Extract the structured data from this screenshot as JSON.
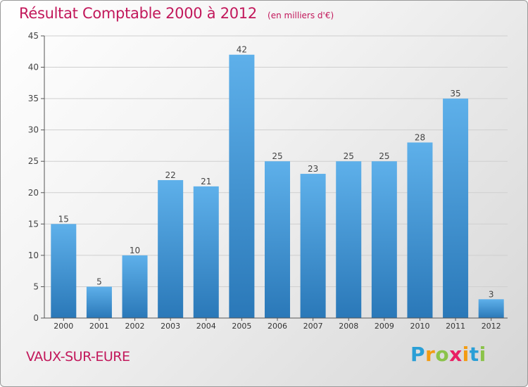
{
  "chart_data": {
    "type": "bar",
    "title": "Résultat Comptable 2000 à 2012",
    "subtitle": "(en milliers d'€)",
    "xlabel": "",
    "ylabel": "",
    "categories": [
      "2000",
      "2001",
      "2002",
      "2003",
      "2004",
      "2005",
      "2006",
      "2007",
      "2008",
      "2009",
      "2010",
      "2011",
      "2012"
    ],
    "values": [
      15,
      5,
      10,
      22,
      21,
      42,
      25,
      23,
      25,
      25,
      28,
      35,
      3
    ],
    "ylim": [
      0,
      45
    ],
    "yticks": [
      0,
      5,
      10,
      15,
      20,
      25,
      30,
      35,
      40,
      45
    ],
    "grid": true,
    "bar_color": "#3b8fd4",
    "text_color": "#c2185b"
  },
  "footer": {
    "place_name": "VAUX-SUR-EURE",
    "logo_letters": [
      {
        "ch": "P",
        "color": "#2a9fd6"
      },
      {
        "ch": "r",
        "color": "#f39c12"
      },
      {
        "ch": "o",
        "color": "#8bc34a"
      },
      {
        "ch": "x",
        "color": "#e91e63"
      },
      {
        "ch": "i",
        "color": "#f39c12"
      },
      {
        "ch": "t",
        "color": "#2a9fd6"
      },
      {
        "ch": "i",
        "color": "#8bc34a"
      }
    ]
  }
}
